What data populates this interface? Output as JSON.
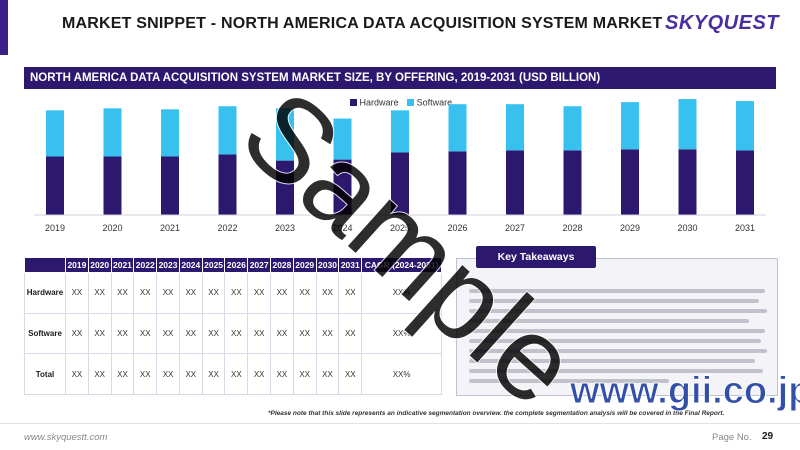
{
  "page": {
    "title": "MARKET SNIPPET - NORTH AMERICA DATA ACQUISITION SYSTEM MARKET",
    "logo": "SKYQUEST",
    "logo_tagline": "",
    "website": "www.skyquestt.com",
    "page_label": "Page No.",
    "page_number": "29",
    "footnote": "*Please note that this slide represents an indicative segmentation overview. the complete segmentation analysis will be covered in the Final Report.",
    "watermark": "Sample",
    "watermark2": "www.gii.co.jp"
  },
  "colors": {
    "hardware": "#2d1870",
    "software": "#38c0ef",
    "header": "#2d1870"
  },
  "chart_data": {
    "type": "bar",
    "stacked": true,
    "title": "NORTH AMERICA DATA ACQUISITION SYSTEM MARKET SIZE, BY OFFERING, 2019-2031 (USD BILLION)",
    "categories": [
      "2019",
      "2020",
      "2021",
      "2022",
      "2023",
      "2024",
      "2025",
      "2026",
      "2027",
      "2028",
      "2029",
      "2030",
      "2031"
    ],
    "series": [
      {
        "name": "Hardware",
        "values": [
          57,
          57,
          57,
          59,
          53,
          54,
          61,
          62,
          63,
          63,
          64,
          64,
          63
        ]
      },
      {
        "name": "Software",
        "values": [
          45,
          47,
          46,
          47,
          51,
          40,
          41,
          46,
          45,
          43,
          46,
          49,
          48
        ]
      }
    ],
    "ylim": [
      0,
      115
    ],
    "legend": "top-center",
    "grid": false
  },
  "table": {
    "headers": [
      "",
      "2019",
      "2020",
      "2021",
      "2022",
      "2023",
      "2024",
      "2025",
      "2026",
      "2027",
      "2028",
      "2029",
      "2030",
      "2031",
      "CAGR (2024-2031)"
    ],
    "rows": [
      {
        "label": "Hardware",
        "cells": [
          "XX",
          "XX",
          "XX",
          "XX",
          "XX",
          "XX",
          "XX",
          "XX",
          "XX",
          "XX",
          "XX",
          "XX",
          "XX",
          "XX%"
        ]
      },
      {
        "label": "Software",
        "cells": [
          "XX",
          "XX",
          "XX",
          "XX",
          "XX",
          "XX",
          "XX",
          "XX",
          "XX",
          "XX",
          "XX",
          "XX",
          "XX",
          "XX%"
        ]
      },
      {
        "label": "Total",
        "cells": [
          "XX",
          "XX",
          "XX",
          "XX",
          "XX",
          "XX",
          "XX",
          "XX",
          "XX",
          "XX",
          "XX",
          "XX",
          "XX",
          "XX%"
        ]
      }
    ]
  },
  "takeaways": {
    "title": "Key Takeaways"
  }
}
